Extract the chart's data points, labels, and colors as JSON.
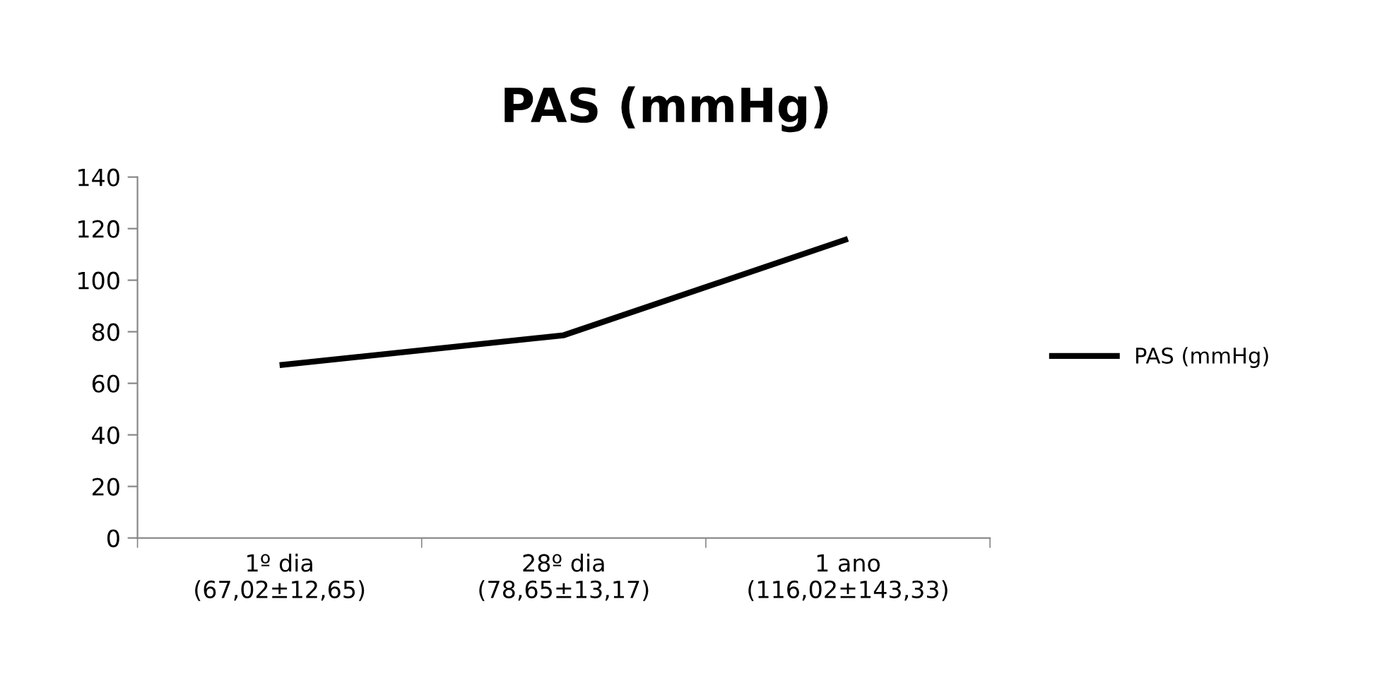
{
  "chart_data": {
    "type": "line",
    "title": "PAS (mmHg)",
    "categories": [
      "1º dia\n(67,02±12,65)",
      "28º dia\n(78,65±13,17)",
      "1 ano\n(116,02±143,33)"
    ],
    "series": [
      {
        "name": "PAS (mmHg)",
        "color": "#000000",
        "values": [
          67.02,
          78.65,
          116.02
        ]
      }
    ],
    "ylim": [
      0,
      140
    ],
    "yticks": [
      0,
      20,
      40,
      60,
      80,
      100,
      120,
      140
    ],
    "grid": false,
    "legend": "right",
    "marker": "none",
    "line_style": "solid"
  }
}
